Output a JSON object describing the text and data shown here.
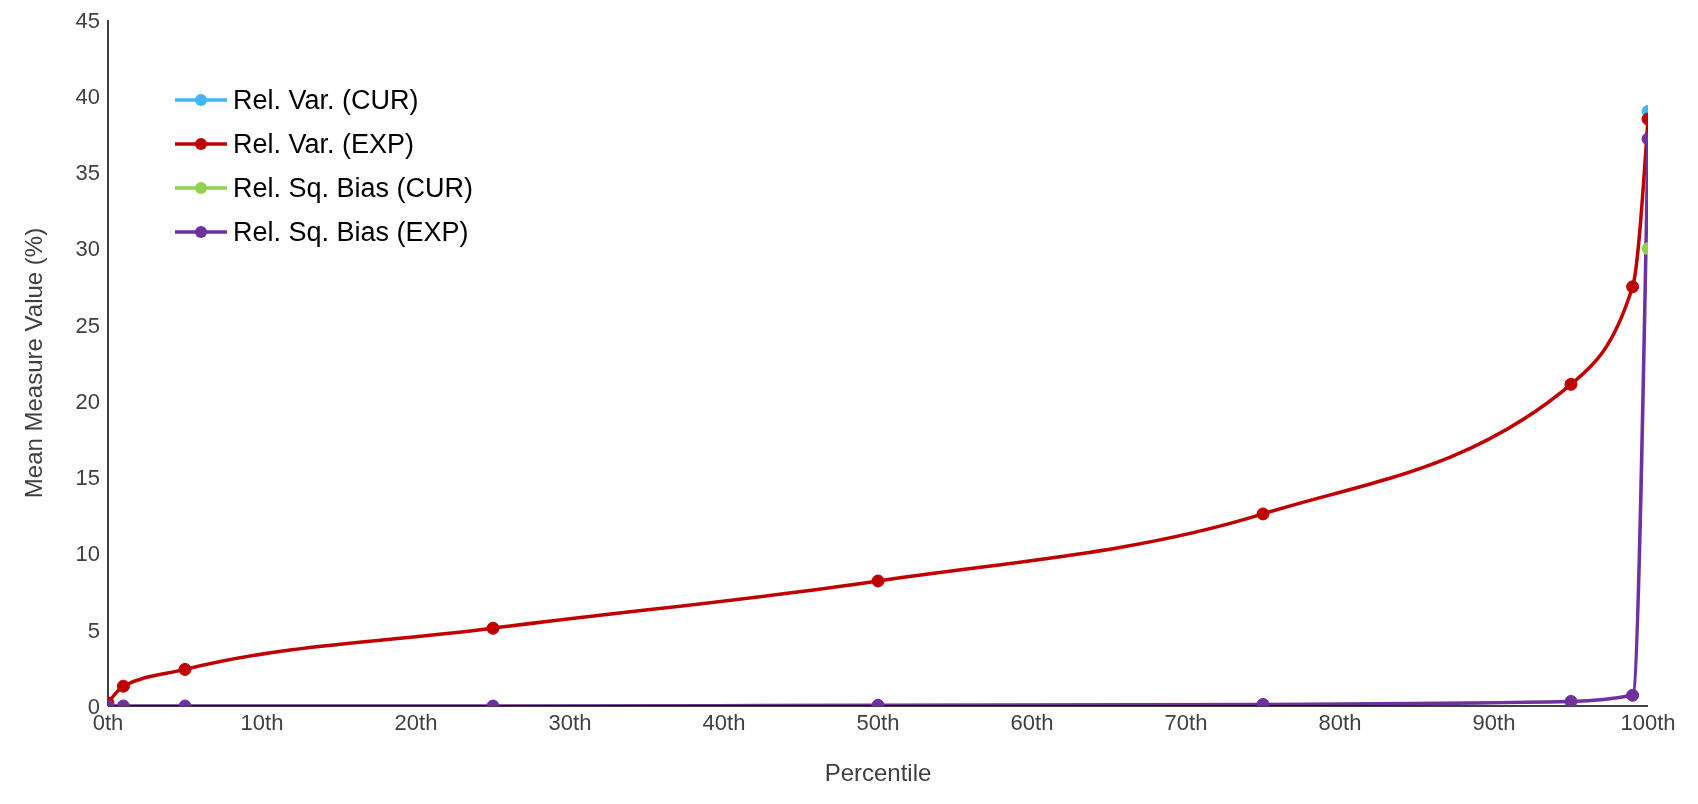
{
  "chart_data": {
    "type": "line",
    "xlabel": "Percentile",
    "ylabel": "Mean Measure Value (%)",
    "x": [
      0,
      1,
      5,
      25,
      50,
      75,
      95,
      99,
      100
    ],
    "xlim": [
      0,
      100
    ],
    "xticks": [
      {
        "value": 0,
        "label": "0th"
      },
      {
        "value": 10,
        "label": "10th"
      },
      {
        "value": 20,
        "label": "20th"
      },
      {
        "value": 30,
        "label": "30th"
      },
      {
        "value": 40,
        "label": "40th"
      },
      {
        "value": 50,
        "label": "50th"
      },
      {
        "value": 60,
        "label": "60th"
      },
      {
        "value": 70,
        "label": "70th"
      },
      {
        "value": 80,
        "label": "80th"
      },
      {
        "value": 90,
        "label": "90th"
      },
      {
        "value": 100,
        "label": "100th"
      }
    ],
    "ylim": [
      0,
      45
    ],
    "yticks": [
      0,
      5,
      10,
      15,
      20,
      25,
      30,
      35,
      40,
      45
    ],
    "series": [
      {
        "name": "Rel. Var. (CUR)",
        "color": "#41b6f5",
        "values": [
          null,
          null,
          null,
          null,
          null,
          null,
          null,
          null,
          39
        ]
      },
      {
        "name": "Rel. Var. (EXP)",
        "color": "#c00000",
        "values": [
          0.2,
          1.3,
          2.4,
          5.1,
          8.2,
          12.6,
          21.1,
          27.5,
          38.5
        ]
      },
      {
        "name": "Rel. Sq. Bias (CUR)",
        "color": "#92d050",
        "values": [
          null,
          null,
          null,
          null,
          null,
          null,
          null,
          null,
          30
        ]
      },
      {
        "name": "Rel. Sq. Bias (EXP)",
        "color": "#7030a0",
        "values": [
          0,
          0,
          0,
          0,
          0.05,
          0.1,
          0.3,
          0.7,
          37.2
        ]
      }
    ],
    "grid": false,
    "legend": "top left",
    "marker": "circle",
    "line_style": "solid"
  }
}
